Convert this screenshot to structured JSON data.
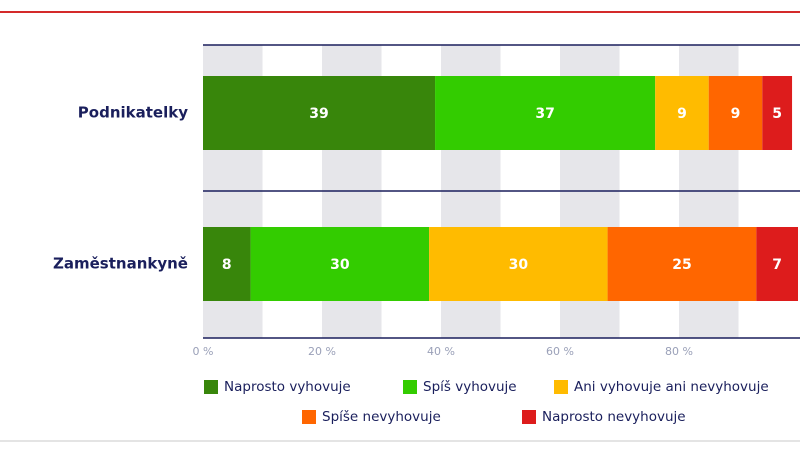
{
  "chart_data": {
    "type": "stacked-bar-horizontal",
    "categories": [
      "Podnikatelky",
      "Zaměstnankyně"
    ],
    "series": [
      {
        "name": "Naprosto vyhovuje",
        "color": "#38860b",
        "values": [
          39,
          8
        ]
      },
      {
        "name": "Spíš vyhovuje",
        "color": "#33cc00",
        "values": [
          37,
          30
        ]
      },
      {
        "name": "Ani vyhovuje ani nevyhovuje",
        "color": "#ffbb00",
        "values": [
          9,
          30
        ]
      },
      {
        "name": "Spíše nevyhovuje",
        "color": "#ff6600",
        "values": [
          9,
          25
        ]
      },
      {
        "name": "Naprosto nevyhovuje",
        "color": "#dd1c1c",
        "values": [
          5,
          7
        ]
      }
    ],
    "xlim": [
      0,
      100
    ],
    "xticks": [
      {
        "value": 0,
        "label": "0 %"
      },
      {
        "value": 20,
        "label": "20 %"
      },
      {
        "value": 40,
        "label": "40 %"
      },
      {
        "value": 60,
        "label": "60 %"
      },
      {
        "value": 80,
        "label": "80 %"
      }
    ]
  }
}
